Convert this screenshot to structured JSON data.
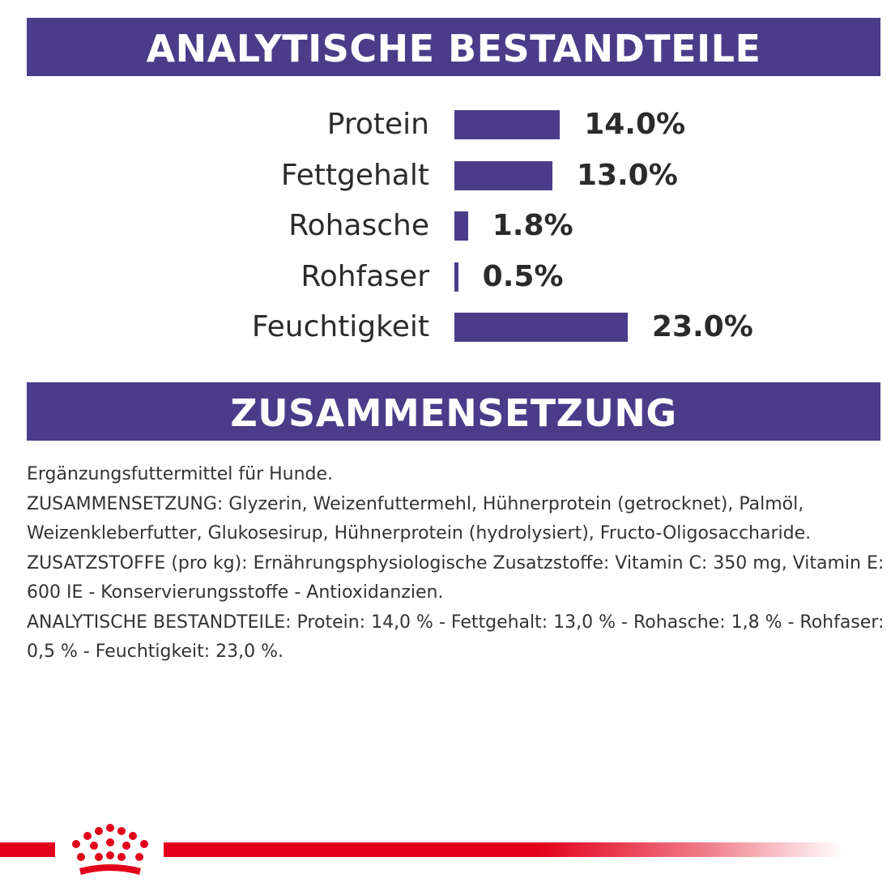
{
  "sections": {
    "analytics_title": "ANALYTISCHE BESTANDTEILE",
    "composition_title": "ZUSAMMENSETZUNG"
  },
  "nutrients": [
    {
      "label": "Protein",
      "value": 14.0,
      "display": "14.0%"
    },
    {
      "label": "Fettgehalt",
      "value": 13.0,
      "display": "13.0%"
    },
    {
      "label": "Rohasche",
      "value": 1.8,
      "display": "1.8%"
    },
    {
      "label": "Rohfaser",
      "value": 0.5,
      "display": "0.5%"
    },
    {
      "label": "Feuchtigkeit",
      "value": 23.0,
      "display": "23.0%"
    }
  ],
  "composition": {
    "lines": [
      "Ergänzungsfuttermittel für Hunde.",
      "ZUSAMMENSETZUNG: Glyzerin, Weizenfuttermehl, Hühnerprotein (getrocknet), Palmöl, Weizenkleberfutter, Glukosesirup, Hühnerprotein (hydrolysiert), Fructo-Oligosaccharide.",
      "ZUSATZSTOFFE (pro kg): Ernährungsphysiologische Zusatzstoffe: Vitamin C: 350 mg, Vitamin E: 600 IE - Konservierungsstoffe - Antioxidanzien.",
      "ANALYTISCHE BESTANDTEILE: Protein: 14,0 % - Fettgehalt: 13,0 % - Rohasche: 1,8 % - Rohfaser: 0,5 % - Feuchtigkeit: 23,0 %."
    ]
  },
  "colors": {
    "banner": "#4b3c8a",
    "bar": "#4b3c8a",
    "brand_red": "#e2001a"
  },
  "logo": {
    "icon": "crown-icon"
  }
}
